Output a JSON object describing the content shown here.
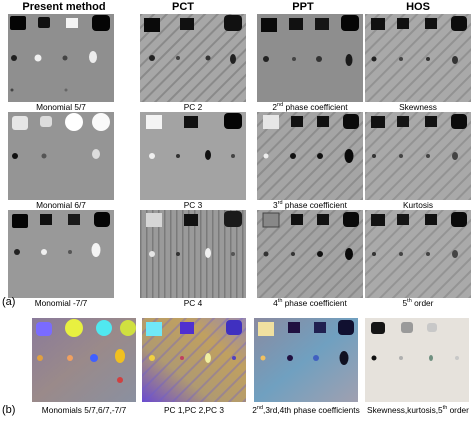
{
  "columns": [
    "Present method",
    "PCT",
    "PPT",
    "HOS"
  ],
  "row_labels": [
    "(a)",
    "(b)"
  ],
  "captions": [
    [
      {
        "main": "Monomial 5/7",
        "sup": "",
        "rest": ""
      },
      {
        "main": "PC 2",
        "sup": "",
        "rest": ""
      },
      {
        "main": "2",
        "sup": "nd",
        "rest": " phase coefficient"
      },
      {
        "main": "Skewness",
        "sup": "",
        "rest": ""
      }
    ],
    [
      {
        "main": "Monomial 6/7",
        "sup": "",
        "rest": ""
      },
      {
        "main": "PC 3",
        "sup": "",
        "rest": ""
      },
      {
        "main": "3",
        "sup": "rd",
        "rest": " phase coefficient"
      },
      {
        "main": "Kurtosis",
        "sup": "",
        "rest": ""
      }
    ],
    [
      {
        "main": "Monomial -7/7",
        "sup": "",
        "rest": ""
      },
      {
        "main": "PC 4",
        "sup": "",
        "rest": ""
      },
      {
        "main": "4",
        "sup": "th",
        "rest": " phase coefficient"
      },
      {
        "main": "5",
        "sup": "th",
        "rest": " order"
      }
    ],
    [
      {
        "main": "Monomials 5/7,6/7,-7/7",
        "sup": "",
        "rest": ""
      },
      {
        "main": "PC 1,PC 2,PC 3",
        "sup": "",
        "rest": ""
      },
      {
        "main": "2",
        "sup": "nd",
        "rest": ",3rd,4th phase coefficients"
      },
      {
        "main": "Skewness,kurtosis,5",
        "sup": "th",
        "rest": " order"
      }
    ]
  ],
  "colors": {
    "background": "#ffffff",
    "panel_gray": "#9a9a9a",
    "color_panel_gray": "#a8a0a6"
  }
}
